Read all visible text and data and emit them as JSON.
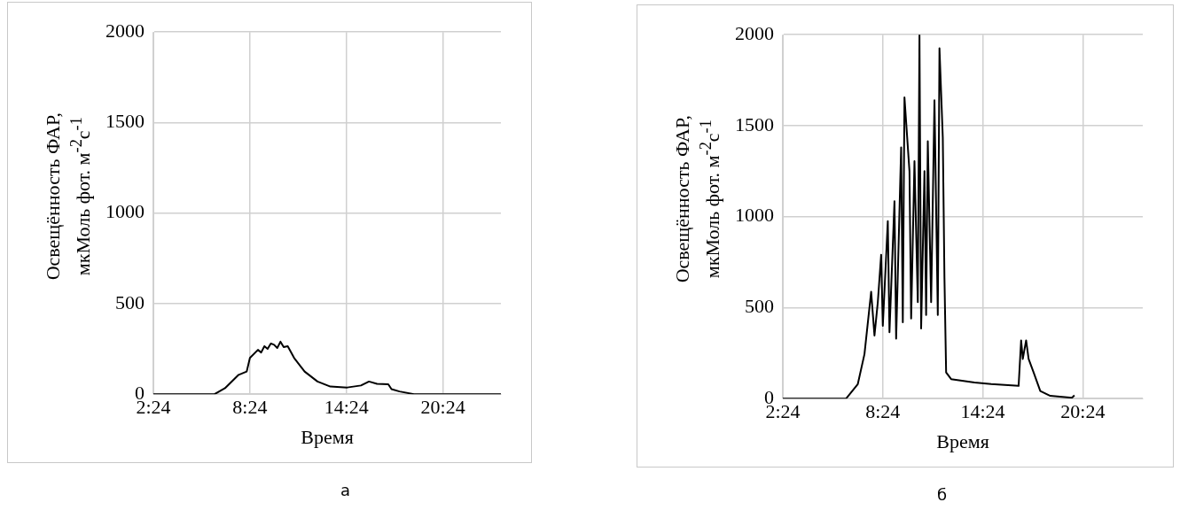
{
  "chart_data": [
    {
      "type": "line",
      "xlabel": "Время",
      "ylabel": "Освещённость ФАР, мкМоль фот. м$^{-2}$с$^{-1}$",
      "annotations": [
        "а"
      ],
      "x": [
        2.4,
        4.0,
        6.2,
        6.85,
        7.7,
        8.2,
        8.4,
        8.9,
        9.1,
        9.3,
        9.5,
        9.7,
        9.9,
        10.1,
        10.3,
        10.5,
        10.75,
        11.15,
        11.8,
        12.6,
        13.4,
        14.45,
        15.3,
        15.8,
        16.3,
        17.0,
        17.2,
        17.7,
        18.6,
        21.0,
        24.0
      ],
      "series": [
        {
          "color": "#000000",
          "values": [
            0,
            0,
            0,
            33,
            107,
            125,
            200,
            245,
            230,
            265,
            250,
            280,
            273,
            255,
            290,
            260,
            265,
            200,
            125,
            70,
            42,
            37,
            48,
            70,
            57,
            55,
            28,
            15,
            0,
            0,
            0
          ]
        }
      ],
      "xlim": [
        2.4,
        24
      ],
      "xticks": [
        {
          "value": 2.4,
          "label": "2:24"
        },
        {
          "value": 8.4,
          "label": "8:24"
        },
        {
          "value": 14.4,
          "label": "14:24"
        },
        {
          "value": 20.4,
          "label": "20:24"
        }
      ],
      "ylim": [
        0,
        2000
      ],
      "yticks": [
        0,
        500,
        1000,
        1500,
        2000
      ],
      "grid": true,
      "legend": false,
      "marker": "none",
      "line_style": "solid"
    },
    {
      "type": "line",
      "xlabel": "Время",
      "ylabel": "Освещённость ФАР, мкМоль фот. м$^{-2}$с$^{-1}$",
      "annotations": [
        "б"
      ],
      "x": [
        2.4,
        4.0,
        6.2,
        6.9,
        7.3,
        7.7,
        7.9,
        8.1,
        8.3,
        8.4,
        8.7,
        8.8,
        9.1,
        9.2,
        9.5,
        9.6,
        9.7,
        10.0,
        10.1,
        10.3,
        10.5,
        10.6,
        10.7,
        10.9,
        11.0,
        11.1,
        11.3,
        11.5,
        11.7,
        11.8,
        12.0,
        12.1,
        12.2,
        12.5,
        13.9,
        14.9,
        16.55,
        16.7,
        16.8,
        17.0,
        17.15,
        17.45,
        17.85,
        18.45,
        19.75,
        19.9
      ],
      "series": [
        {
          "color": "#000000",
          "values": [
            0,
            0,
            0,
            80,
            245,
            587,
            347,
            530,
            790,
            400,
            975,
            365,
            1085,
            330,
            1380,
            420,
            1655,
            1250,
            440,
            1305,
            530,
            2000,
            385,
            1250,
            460,
            1415,
            530,
            1640,
            460,
            1925,
            1435,
            660,
            144,
            107,
            89,
            80,
            70,
            320,
            218,
            320,
            218,
            144,
            42,
            15,
            5,
            18
          ]
        }
      ],
      "xlim": [
        2.4,
        24
      ],
      "xticks": [
        {
          "value": 2.4,
          "label": "2:24"
        },
        {
          "value": 8.4,
          "label": "8:24"
        },
        {
          "value": 14.4,
          "label": "14:24"
        },
        {
          "value": 20.4,
          "label": "20:24"
        }
      ],
      "ylim": [
        0,
        2000
      ],
      "yticks": [
        0,
        500,
        1000,
        1500,
        2000
      ],
      "grid": true,
      "legend": false,
      "marker": "none",
      "line_style": "solid"
    }
  ]
}
